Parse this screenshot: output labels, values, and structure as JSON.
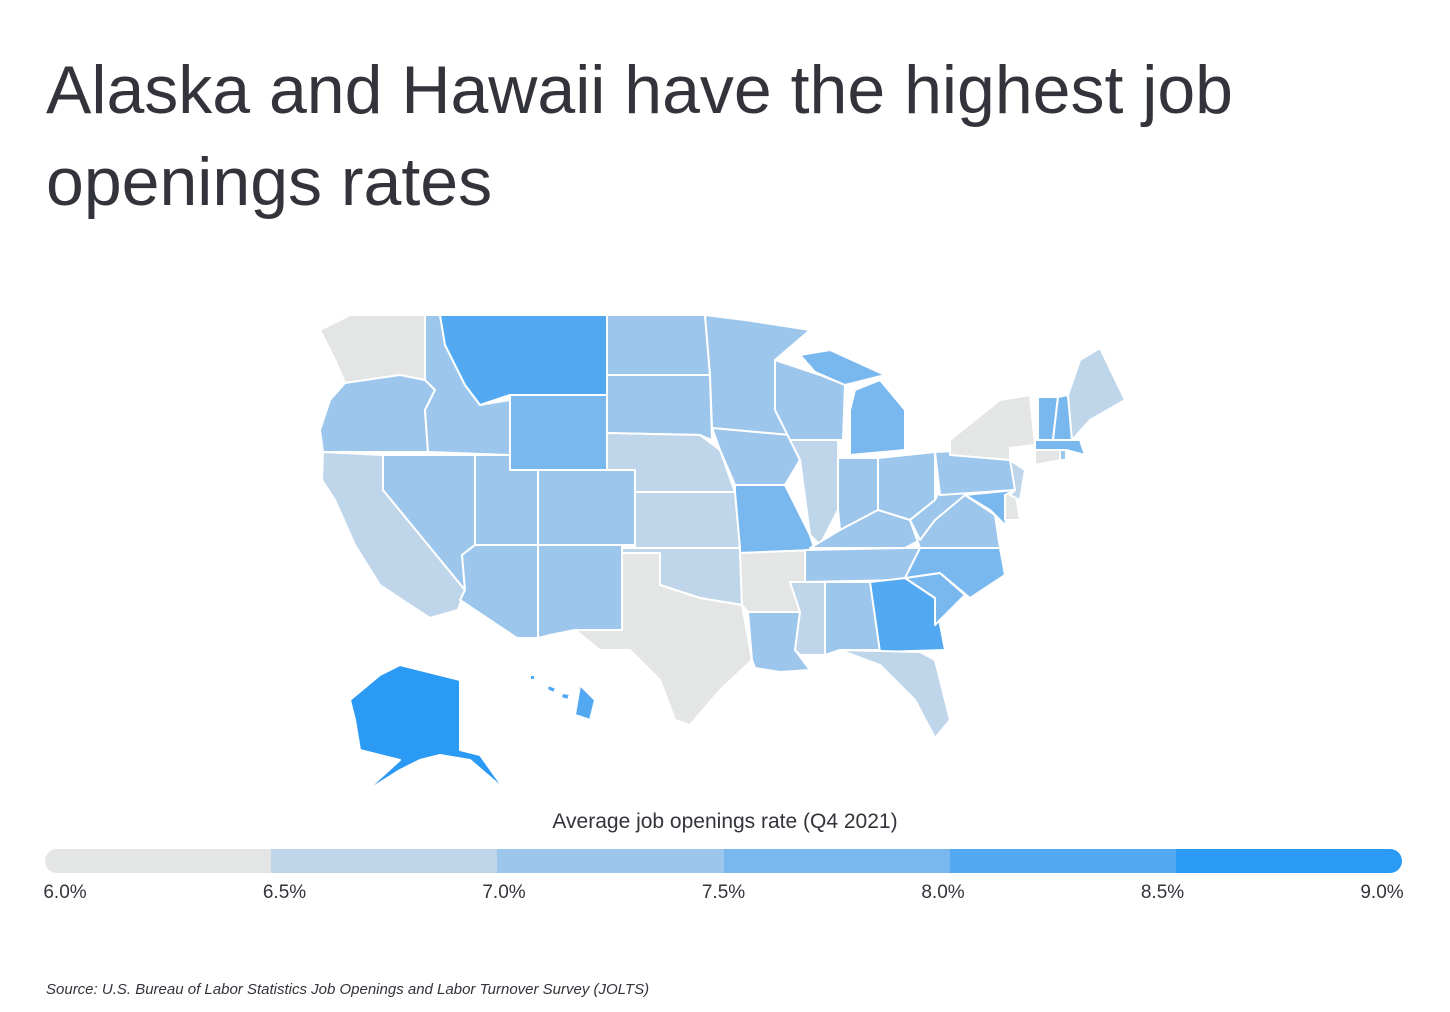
{
  "title": "Alaska and Hawaii have the highest job openings rates",
  "legend": {
    "title": "Average job openings rate (Q4 2021)",
    "ticks": [
      "6.0%",
      "6.5%",
      "7.0%",
      "7.5%",
      "8.0%",
      "8.5%",
      "9.0%"
    ],
    "bins": [
      "6.0–6.5%",
      "6.5–7.0%",
      "7.0–7.5%",
      "7.5–8.0%",
      "8.0–8.5%",
      "8.5–9.0%"
    ],
    "colors": [
      "#e4e5e5",
      "#bfd6ea",
      "#9cc6eb",
      "#79b8ee",
      "#52a9f2",
      "#2b9af5"
    ]
  },
  "state_bins": {
    "WA": 0,
    "OR": 2,
    "CA": 1,
    "NV": 2,
    "ID": 2,
    "MT": 4,
    "WY": 3,
    "UT": 2,
    "AZ": 2,
    "CO": 2,
    "NM": 2,
    "ND": 2,
    "SD": 2,
    "NE": 1,
    "KS": 1,
    "OK": 1,
    "TX": 0,
    "MN": 2,
    "IA": 2,
    "MO": 3,
    "AR": 0,
    "LA": 2,
    "WI": 2,
    "IL": 1,
    "MI": 3,
    "IN": 2,
    "OH": 2,
    "KY": 2,
    "TN": 2,
    "MS": 1,
    "AL": 2,
    "GA": 4,
    "FL": 1,
    "SC": 3,
    "NC": 3,
    "VA": 2,
    "WV": 2,
    "MD": 3,
    "DE": 0,
    "PA": 2,
    "NJ": 1,
    "NY": 0,
    "CT": 0,
    "RI": 2,
    "MA": 3,
    "VT": 3,
    "NH": 3,
    "ME": 1,
    "AK": 5,
    "HI": 4
  },
  "source": "Source:  U.S. Bureau of Labor Statistics Job Openings and Labor Turnover Survey (JOLTS)"
}
